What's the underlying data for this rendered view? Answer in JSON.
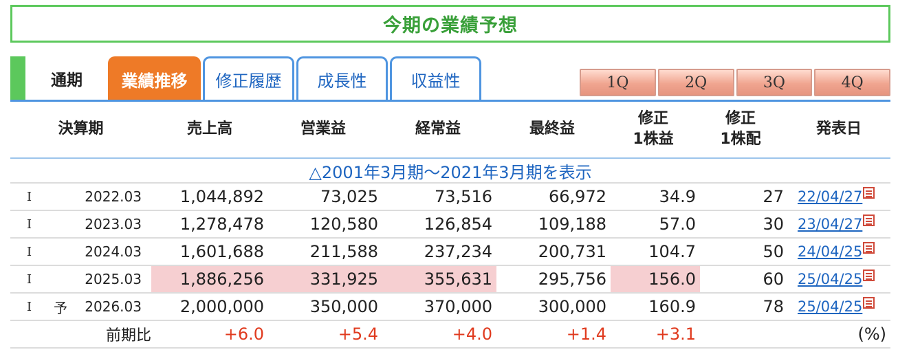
{
  "title": "今期の業績予想",
  "tabs": {
    "static_label": "通期",
    "items": [
      "業績推移",
      "修正履歴",
      "成長性",
      "収益性"
    ]
  },
  "quarters": [
    "1Q",
    "2Q",
    "3Q",
    "4Q"
  ],
  "headers": {
    "period": "決算期",
    "sales": "売上高",
    "operating": "営業益",
    "ordinary": "経常益",
    "net": "最終益",
    "eps_line1": "修正",
    "eps_line2": "1株益",
    "div_line1": "修正",
    "div_line2": "1株配",
    "date": "発表日"
  },
  "expand_link": "△2001年3月期～2021年3月期を表示",
  "rows": [
    {
      "kind": "I",
      "forecast": "",
      "period": "2022.03",
      "sales": "1,044,892",
      "operating": "73,025",
      "ordinary": "73,516",
      "net": "66,972",
      "eps": "34.9",
      "div": "27",
      "date": "22/04/27"
    },
    {
      "kind": "I",
      "forecast": "",
      "period": "2023.03",
      "sales": "1,278,478",
      "operating": "120,580",
      "ordinary": "126,854",
      "net": "109,188",
      "eps": "57.0",
      "div": "30",
      "date": "23/04/27"
    },
    {
      "kind": "I",
      "forecast": "",
      "period": "2024.03",
      "sales": "1,601,688",
      "operating": "211,588",
      "ordinary": "237,234",
      "net": "200,731",
      "eps": "104.7",
      "div": "50",
      "date": "24/04/25"
    },
    {
      "kind": "I",
      "forecast": "",
      "period": "2025.03",
      "sales": "1,886,256",
      "operating": "331,925",
      "ordinary": "355,631",
      "net": "295,756",
      "eps": "156.0",
      "div": "60",
      "date": "25/04/25"
    },
    {
      "kind": "I",
      "forecast": "予",
      "period": "2026.03",
      "sales": "2,000,000",
      "operating": "350,000",
      "ordinary": "370,000",
      "net": "300,000",
      "eps": "160.9",
      "div": "78",
      "date": "25/04/25"
    }
  ],
  "ratio": {
    "label": "前期比",
    "sales": "+6.0",
    "operating": "+5.4",
    "ordinary": "+4.0",
    "net": "+1.4",
    "eps": "+3.1",
    "unit": "(%)"
  },
  "colors": {
    "green": "#5cc85c",
    "blue": "#4f95e0",
    "orange": "#ee7a27",
    "highlight": "#f6cfd1",
    "red": "#e03a1e"
  },
  "icons": {
    "date_doc": "pdf-icon"
  }
}
